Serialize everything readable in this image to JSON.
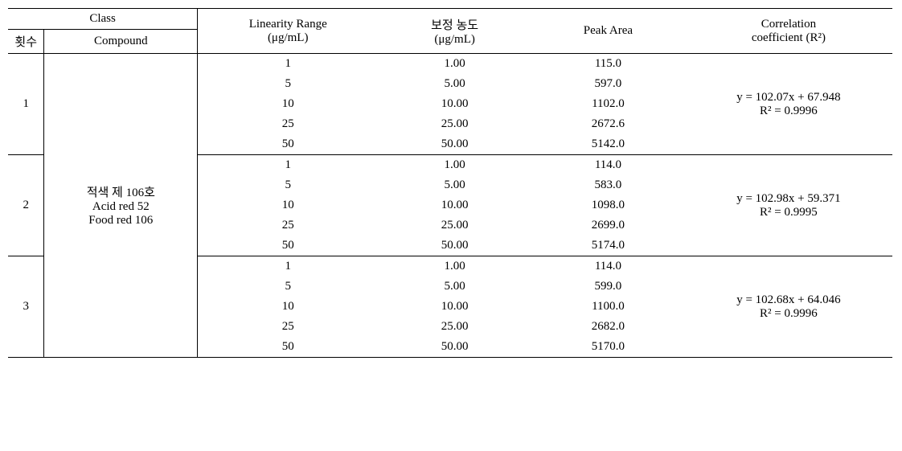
{
  "header": {
    "class": "Class",
    "run_col": "횟수",
    "compound_col": "Compound",
    "linearity_line1": "Linearity Range",
    "linearity_line2": "(μg/mL)",
    "corrected_line1": "보정 농도",
    "corrected_line2": "(μg/mL)",
    "peak_area": "Peak Area",
    "coef_line1": "Correlation",
    "coef_line2": "coefficient (R²)"
  },
  "compound": {
    "line1": "적색 제 106호",
    "line2": "Acid red 52",
    "line3": "Food red 106"
  },
  "runs": {
    "r1": {
      "num": "1",
      "lin": [
        "1",
        "5",
        "10",
        "25",
        "50"
      ],
      "corr": [
        "1.00",
        "5.00",
        "10.00",
        "25.00",
        "50.00"
      ],
      "peak": [
        "115.0",
        "597.0",
        "1102.0",
        "2672.6",
        "5142.0"
      ],
      "eq_line1": "y = 102.07x + 67.948",
      "eq_line2": "R² = 0.9996"
    },
    "r2": {
      "num": "2",
      "lin": [
        "1",
        "5",
        "10",
        "25",
        "50"
      ],
      "corr": [
        "1.00",
        "5.00",
        "10.00",
        "25.00",
        "50.00"
      ],
      "peak": [
        "114.0",
        "583.0",
        "1098.0",
        "2699.0",
        "5174.0"
      ],
      "eq_line1": "y = 102.98x + 59.371",
      "eq_line2": "R² = 0.9995"
    },
    "r3": {
      "num": "3",
      "lin": [
        "1",
        "5",
        "10",
        "25",
        "50"
      ],
      "corr": [
        "1.00",
        "5.00",
        "10.00",
        "25.00",
        "50.00"
      ],
      "peak": [
        "114.0",
        "599.0",
        "1100.0",
        "2682.0",
        "5170.0"
      ],
      "eq_line1": "y = 102.68x + 64.046",
      "eq_line2": "R² = 0.9996"
    }
  },
  "style": {
    "font_family": "Times New Roman, serif",
    "font_size_pt": 15,
    "border_color": "#000000",
    "background_color": "#ffffff",
    "text_color": "#000000"
  }
}
